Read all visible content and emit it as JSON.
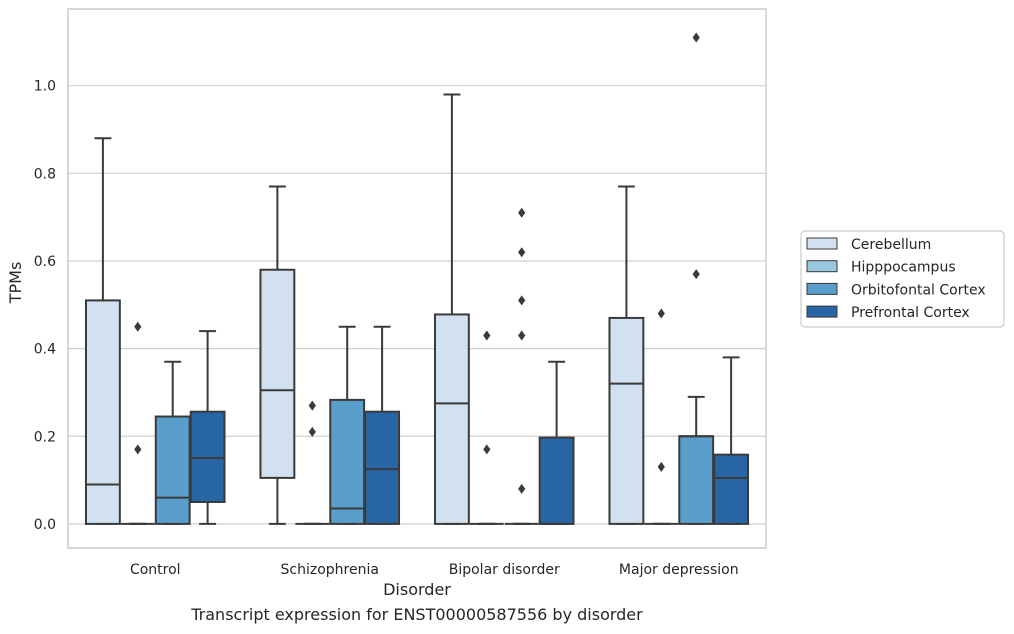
{
  "caption": "Transcript expression for ENST00000587556 by disorder",
  "colors": {
    "Cerebellum": "#d2e1f0",
    "Hipppocampus": "#9ac8e0",
    "Orbitofontal Cortex": "#5a9ecb",
    "Prefrontal Cortex": "#2865a5",
    "box_edge": "#3a3a3a",
    "grid": "#d0d0d0"
  },
  "chart_data": {
    "type": "box",
    "title": "",
    "xlabel": "Disorder",
    "ylabel": "TPMs",
    "ylim": [
      -0.055,
      1.175
    ],
    "yticks": [
      "0.0",
      "0.2",
      "0.4",
      "0.6",
      "0.8",
      "1.0"
    ],
    "categories": [
      "Control",
      "Schizophrenia",
      "Bipolar disorder",
      "Major depression"
    ],
    "grid": "horizontal",
    "legend_position": "right",
    "series": [
      {
        "name": "Cerebellum",
        "boxes": [
          {
            "whislo": 0.0,
            "q1": 0.0,
            "med": 0.09,
            "q3": 0.51,
            "whishi": 0.88,
            "fliers": []
          },
          {
            "whislo": 0.0,
            "q1": 0.105,
            "med": 0.305,
            "q3": 0.58,
            "whishi": 0.77,
            "fliers": []
          },
          {
            "whislo": 0.0,
            "q1": 0.0,
            "med": 0.275,
            "q3": 0.478,
            "whishi": 0.98,
            "fliers": []
          },
          {
            "whislo": 0.0,
            "q1": 0.0,
            "med": 0.32,
            "q3": 0.47,
            "whishi": 0.77,
            "fliers": []
          }
        ]
      },
      {
        "name": "Hipppocampus",
        "boxes": [
          {
            "whislo": 0.0,
            "q1": 0.0,
            "med": 0.0,
            "q3": 0.0,
            "whishi": 0.0,
            "fliers": [
              0.17,
              0.45
            ]
          },
          {
            "whislo": 0.0,
            "q1": 0.0,
            "med": 0.0,
            "q3": 0.0,
            "whishi": 0.0,
            "fliers": [
              0.21,
              0.27
            ]
          },
          {
            "whislo": 0.0,
            "q1": 0.0,
            "med": 0.0,
            "q3": 0.0,
            "whishi": 0.0,
            "fliers": [
              0.17,
              0.43
            ]
          },
          {
            "whislo": 0.0,
            "q1": 0.0,
            "med": 0.0,
            "q3": 0.0,
            "whishi": 0.0,
            "fliers": [
              0.13,
              0.48
            ]
          }
        ]
      },
      {
        "name": "Orbitofontal Cortex",
        "boxes": [
          {
            "whislo": 0.0,
            "q1": 0.0,
            "med": 0.06,
            "q3": 0.245,
            "whishi": 0.37,
            "fliers": []
          },
          {
            "whislo": 0.0,
            "q1": 0.0,
            "med": 0.035,
            "q3": 0.283,
            "whishi": 0.45,
            "fliers": []
          },
          {
            "whislo": 0.0,
            "q1": 0.0,
            "med": 0.0,
            "q3": 0.0,
            "whishi": 0.0,
            "fliers": [
              0.08,
              0.43,
              0.51,
              0.62,
              0.71
            ]
          },
          {
            "whislo": 0.0,
            "q1": 0.0,
            "med": 0.2,
            "q3": 0.2,
            "whishi": 0.29,
            "fliers": [
              0.57,
              1.11
            ]
          }
        ]
      },
      {
        "name": "Prefrontal Cortex",
        "boxes": [
          {
            "whislo": 0.0,
            "q1": 0.05,
            "med": 0.15,
            "q3": 0.256,
            "whishi": 0.44,
            "fliers": []
          },
          {
            "whislo": 0.0,
            "q1": 0.0,
            "med": 0.125,
            "q3": 0.256,
            "whishi": 0.45,
            "fliers": []
          },
          {
            "whislo": 0.0,
            "q1": 0.0,
            "med": 0.0,
            "q3": 0.197,
            "whishi": 0.37,
            "fliers": []
          },
          {
            "whislo": 0.0,
            "q1": 0.0,
            "med": 0.105,
            "q3": 0.158,
            "whishi": 0.38,
            "fliers": []
          }
        ]
      }
    ]
  }
}
